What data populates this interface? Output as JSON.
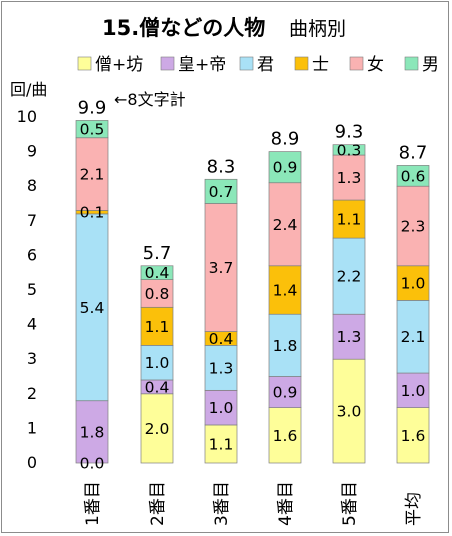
{
  "chart_data": {
    "type": "bar",
    "stacked": true,
    "title_main": "15.僧などの人物",
    "title_sub": "曲柄別",
    "ylabel": "回/曲",
    "xlabel": "",
    "ylim": [
      0,
      10
    ],
    "yticks": [
      "0",
      "1",
      "2",
      "3",
      "4",
      "5",
      "6",
      "7",
      "8",
      "9",
      "10"
    ],
    "grid": false,
    "legend_position": "top",
    "annotation": "←8文字計",
    "categories": [
      "1番目",
      "2番目",
      "3番目",
      "4番目",
      "5番目",
      "平均"
    ],
    "totals": [
      "9.9",
      "5.7",
      "8.3",
      "8.9",
      "9.3",
      "8.7"
    ],
    "series": [
      {
        "name": "僧+坊",
        "color": "#fefe99",
        "values": [
          0.0,
          2.0,
          1.1,
          1.6,
          3.0,
          1.6
        ],
        "labels": [
          "0.0",
          "2.0",
          "1.1",
          "1.6",
          "3.0",
          "1.6"
        ]
      },
      {
        "name": "皇+帝",
        "color": "#cda9e5",
        "values": [
          1.8,
          0.4,
          1.0,
          0.9,
          1.3,
          1.0
        ],
        "labels": [
          "1.8",
          "0.4",
          "1.0",
          "0.9",
          "1.3",
          "1.0"
        ]
      },
      {
        "name": "君",
        "color": "#a9e1f6",
        "values": [
          5.4,
          1.0,
          1.3,
          1.8,
          2.2,
          2.1
        ],
        "labels": [
          "5.4",
          "1.0",
          "1.3",
          "1.8",
          "2.2",
          "2.1"
        ]
      },
      {
        "name": "士",
        "color": "#fbc00a",
        "values": [
          0.1,
          1.1,
          0.4,
          1.4,
          1.1,
          1.0
        ],
        "labels": [
          "0.1",
          "1.1",
          "0.4",
          "1.4",
          "1.1",
          "1.0"
        ]
      },
      {
        "name": "女",
        "color": "#fab2b2",
        "values": [
          2.1,
          0.8,
          3.7,
          2.4,
          1.3,
          2.3
        ],
        "labels": [
          "2.1",
          "0.8",
          "3.7",
          "2.4",
          "1.3",
          "2.3"
        ]
      },
      {
        "name": "男",
        "color": "#8be7b9",
        "values": [
          0.5,
          0.4,
          0.7,
          0.9,
          0.3,
          0.6
        ],
        "labels": [
          "0.5",
          "0.4",
          "0.7",
          "0.9",
          "0.3",
          "0.6"
        ]
      }
    ]
  }
}
